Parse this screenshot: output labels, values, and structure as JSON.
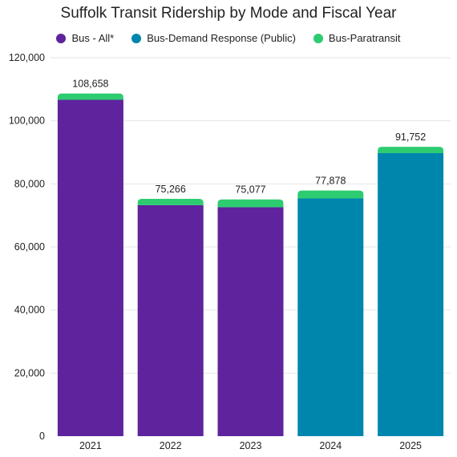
{
  "chart_data": {
    "type": "bar",
    "stacked": true,
    "title": "Suffolk Transit Ridership by Mode and Fiscal Year",
    "xlabel": "",
    "ylabel": "",
    "categories": [
      "2021",
      "2022",
      "2023",
      "2024",
      "2025"
    ],
    "series": [
      {
        "name": "Bus - All*",
        "color": "#5E239D",
        "values": [
          106658,
          73266,
          72577,
          null,
          null
        ]
      },
      {
        "name": "Bus-Demand Response (Public)",
        "color": "#0086AD",
        "values": [
          null,
          null,
          null,
          75378,
          89752
        ]
      },
      {
        "name": "Bus-Paratransit",
        "color": "#2ECC71",
        "values": [
          2000,
          2000,
          2500,
          2500,
          2000
        ]
      }
    ],
    "totals": [
      "108,658",
      "75,266",
      "75,077",
      "77,878",
      "91,752"
    ],
    "ylim": [
      0,
      120000
    ],
    "yticks": [
      0,
      20000,
      40000,
      60000,
      80000,
      100000,
      120000
    ],
    "ytick_labels": [
      "0",
      "20,000",
      "40,000",
      "60,000",
      "80,000",
      "100,000",
      "120,000"
    ],
    "grid": true,
    "legend": "top-center"
  }
}
